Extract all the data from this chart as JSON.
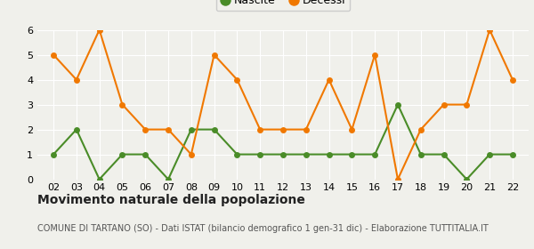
{
  "years": [
    2,
    3,
    4,
    5,
    6,
    7,
    8,
    9,
    10,
    11,
    12,
    13,
    14,
    15,
    16,
    17,
    18,
    19,
    20,
    21,
    22
  ],
  "nascite": [
    1,
    2,
    0,
    1,
    1,
    0,
    2,
    2,
    1,
    1,
    1,
    1,
    1,
    1,
    1,
    3,
    1,
    1,
    0,
    1,
    1
  ],
  "decessi": [
    5,
    4,
    6,
    3,
    2,
    2,
    1,
    5,
    4,
    2,
    2,
    2,
    4,
    2,
    5,
    0,
    2,
    3,
    3,
    6,
    4
  ],
  "nascite_color": "#4a8c28",
  "decessi_color": "#f07800",
  "title": "Movimento naturale della popolazione",
  "subtitle": "COMUNE DI TARTANO (SO) - Dati ISTAT (bilancio demografico 1 gen-31 dic) - Elaborazione TUTTITALIA.IT",
  "legend_nascite": "Nascite",
  "legend_decessi": "Decessi",
  "ylim": [
    0,
    6
  ],
  "yticks": [
    0,
    1,
    2,
    3,
    4,
    5,
    6
  ],
  "background_color": "#f0f0eb",
  "grid_color": "#ffffff",
  "title_fontsize": 10,
  "subtitle_fontsize": 7,
  "legend_fontsize": 9,
  "tick_fontsize": 8,
  "marker_size": 5,
  "line_width": 1.5
}
